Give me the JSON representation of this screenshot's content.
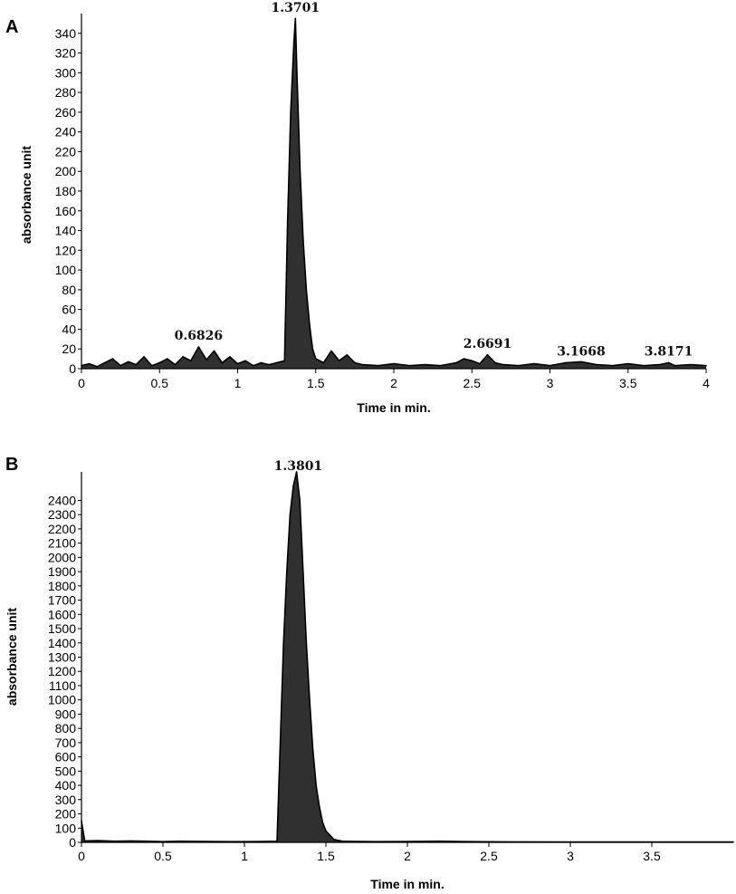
{
  "chart_data": [
    {
      "panel": "A",
      "type": "line",
      "xlabel": "Time in min.",
      "ylabel": "absorbance unit",
      "xlim": [
        0,
        4
      ],
      "ylim": [
        0,
        360
      ],
      "xticks": [
        "0",
        "0.5",
        "1",
        "1.5",
        "2",
        "2.5",
        "3",
        "3.5",
        "4"
      ],
      "yticks": [
        "0",
        "20",
        "40",
        "60",
        "80",
        "100",
        "120",
        "140",
        "160",
        "180",
        "200",
        "220",
        "240",
        "260",
        "280",
        "300",
        "320",
        "340"
      ],
      "peak_labels": [
        {
          "label": "1.3701",
          "x": 1.37,
          "y": 355
        },
        {
          "label": "0.6826",
          "x": 0.75,
          "y": 22
        },
        {
          "label": "2.6691",
          "x": 2.6,
          "y": 14
        },
        {
          "label": "3.1668",
          "x": 3.2,
          "y": 6
        },
        {
          "label": "3.8171",
          "x": 3.76,
          "y": 6
        }
      ],
      "series": [
        {
          "x": [
            0,
            0.05,
            0.1,
            0.15,
            0.2,
            0.25,
            0.3,
            0.35,
            0.4,
            0.45,
            0.5,
            0.55,
            0.6,
            0.65,
            0.7,
            0.75,
            0.8,
            0.85,
            0.9,
            0.95,
            1.0,
            1.05,
            1.1,
            1.15,
            1.2,
            1.25,
            1.3,
            1.32,
            1.34,
            1.36,
            1.37,
            1.38,
            1.4,
            1.42,
            1.44,
            1.46,
            1.48,
            1.5,
            1.55,
            1.6,
            1.65,
            1.7,
            1.75,
            1.8,
            1.9,
            2.0,
            2.1,
            2.2,
            2.3,
            2.4,
            2.45,
            2.5,
            2.55,
            2.6,
            2.65,
            2.7,
            2.8,
            2.9,
            3.0,
            3.1,
            3.2,
            3.3,
            3.4,
            3.5,
            3.6,
            3.7,
            3.76,
            3.8,
            3.9,
            4.0
          ],
          "y": [
            3,
            5,
            2,
            6,
            10,
            3,
            7,
            4,
            12,
            3,
            6,
            10,
            4,
            12,
            8,
            22,
            9,
            18,
            6,
            12,
            5,
            8,
            3,
            6,
            4,
            6,
            8,
            150,
            260,
            330,
            355,
            300,
            200,
            130,
            80,
            45,
            20,
            10,
            6,
            18,
            8,
            14,
            6,
            4,
            3,
            5,
            3,
            4,
            3,
            6,
            10,
            8,
            5,
            14,
            6,
            4,
            3,
            5,
            3,
            6,
            7,
            4,
            3,
            5,
            3,
            4,
            6,
            3,
            4,
            3
          ]
        }
      ]
    },
    {
      "panel": "B",
      "type": "line",
      "xlabel": "Time in min.",
      "ylabel": "absorbance unit",
      "xlim": [
        0,
        4
      ],
      "ylim": [
        0,
        2600
      ],
      "xticks": [
        "0",
        "0.5",
        "1",
        "1.5",
        "2",
        "2.5",
        "3",
        "3.5"
      ],
      "yticks": [
        "0",
        "100",
        "200",
        "300",
        "400",
        "500",
        "600",
        "700",
        "800",
        "900",
        "1000",
        "1100",
        "1200",
        "1300",
        "1400",
        "1500",
        "1600",
        "1700",
        "1800",
        "1900",
        "2000",
        "2100",
        "2200",
        "2300",
        "2400"
      ],
      "peak_labels": [
        {
          "label": "1.3801",
          "x": 1.33,
          "y": 2600
        }
      ],
      "series": [
        {
          "x": [
            0,
            0.02,
            0.1,
            0.2,
            0.3,
            0.4,
            0.5,
            0.6,
            0.8,
            1.0,
            1.1,
            1.2,
            1.22,
            1.24,
            1.26,
            1.28,
            1.3,
            1.32,
            1.34,
            1.36,
            1.38,
            1.4,
            1.42,
            1.44,
            1.46,
            1.48,
            1.5,
            1.55,
            1.6,
            1.8,
            2.0,
            2.2,
            2.4,
            2.6,
            3.0,
            3.5,
            4.0
          ],
          "y": [
            150,
            10,
            12,
            8,
            10,
            8,
            5,
            8,
            6,
            5,
            6,
            8,
            700,
            1400,
            1900,
            2300,
            2500,
            2600,
            2400,
            1900,
            1400,
            1000,
            650,
            400,
            250,
            140,
            80,
            20,
            8,
            5,
            6,
            8,
            5,
            4,
            3,
            3,
            3
          ]
        }
      ]
    }
  ]
}
